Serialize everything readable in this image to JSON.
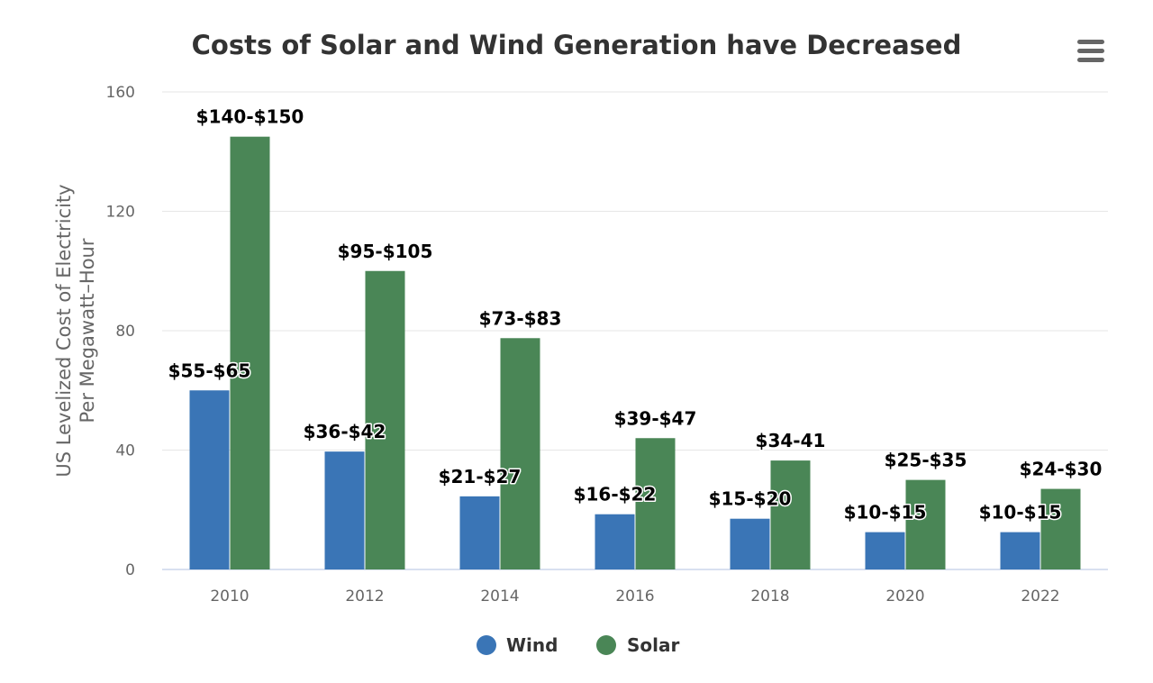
{
  "chart_data": {
    "type": "bar",
    "title": "Costs of Solar and Wind Generation have Decreased",
    "xlabel": "",
    "ylabel": [
      "US Levelized Cost of Electricity",
      "Per Megawatt–Hour"
    ],
    "categories": [
      "2010",
      "2012",
      "2014",
      "2016",
      "2018",
      "2020",
      "2022"
    ],
    "ylim": [
      0,
      160
    ],
    "yticks": [
      0,
      40,
      80,
      120,
      160
    ],
    "grid": true,
    "legend_position": "bottom-center",
    "series": [
      {
        "name": "Wind",
        "color": "#3a75b6",
        "values": [
          60,
          39.5,
          24.5,
          18.5,
          17,
          12.5,
          12.5
        ],
        "labels": [
          "$55-$65",
          "$36-$42",
          "$21-$27",
          "$16-$22",
          "$15-$20",
          "$10-$15",
          "$10-$15"
        ]
      },
      {
        "name": "Solar",
        "color": "#4a8656",
        "values": [
          145,
          100,
          77.5,
          44,
          36.5,
          30,
          27
        ],
        "labels": [
          "$140-$150",
          "$95-$105",
          "$73-$83",
          "$39-$47",
          "$34-41",
          "$25-$35",
          "$24-$30"
        ]
      }
    ]
  },
  "menu": {
    "icon": "hamburger-menu-icon"
  }
}
